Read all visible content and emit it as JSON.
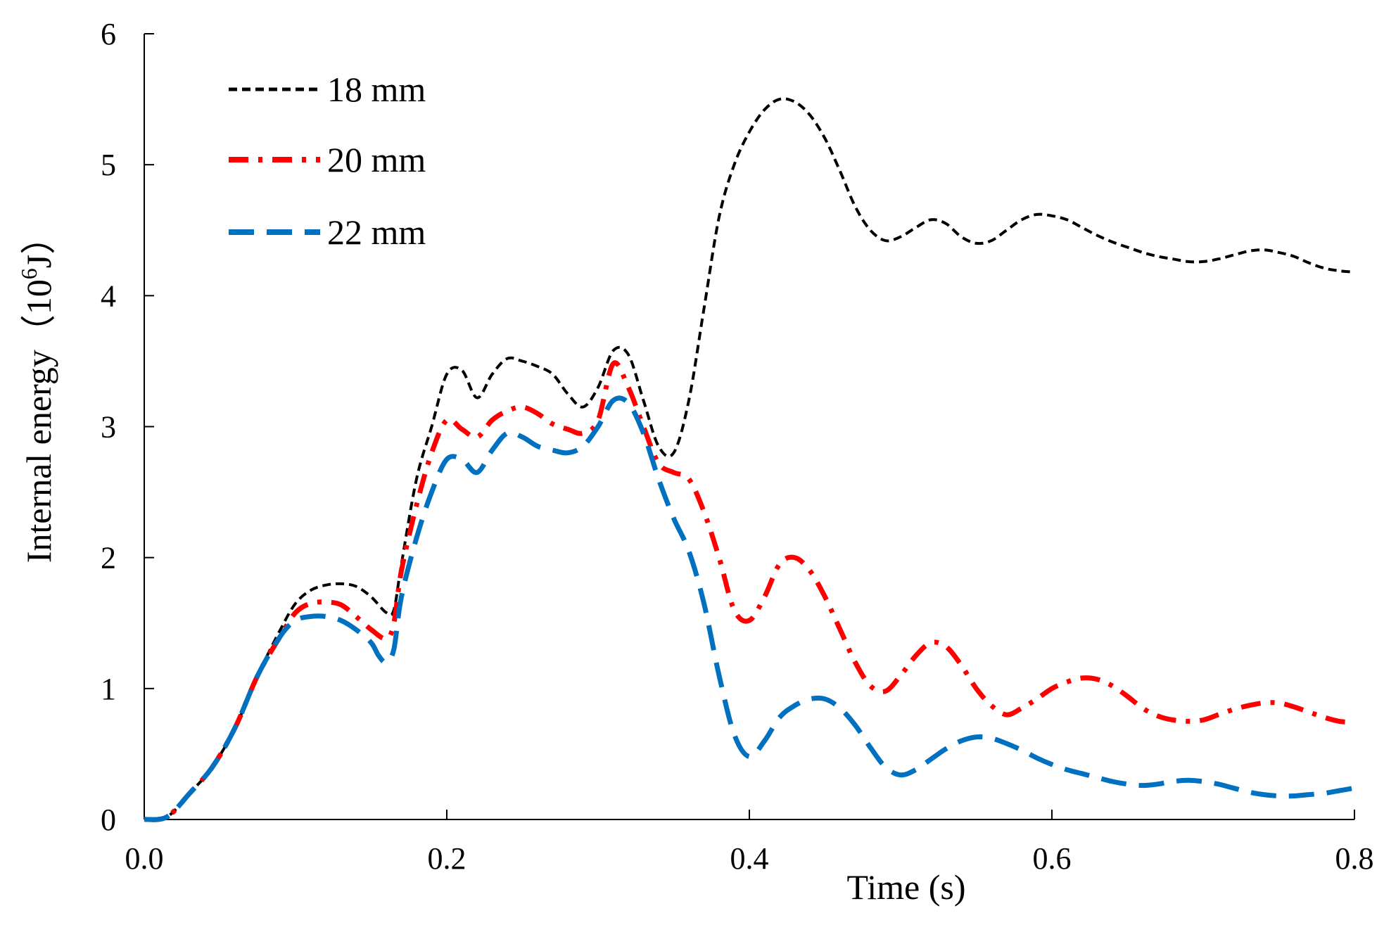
{
  "chart_data": {
    "type": "line",
    "title": "",
    "xlabel": "Time (s)",
    "ylabel": {
      "prefix": "Internal energy（10",
      "sup": "6",
      "suffix": "J）"
    },
    "xlim": [
      0,
      0.8
    ],
    "ylim": [
      0,
      6
    ],
    "xticks": [
      0.0,
      0.2,
      0.4,
      0.6,
      0.8
    ],
    "xtick_labels": [
      "0.0",
      "0.2",
      "0.4",
      "0.6",
      "0.8"
    ],
    "yticks": [
      0,
      1,
      2,
      3,
      4,
      5,
      6
    ],
    "ytick_labels": [
      "0",
      "1",
      "2",
      "3",
      "4",
      "5",
      "6"
    ],
    "grid": false,
    "legend_position": "top-left",
    "series": [
      {
        "name": "18 mm",
        "color": "#000000",
        "style": "short-dash",
        "x": [
          0,
          0.015,
          0.03,
          0.045,
          0.06,
          0.075,
          0.09,
          0.1,
          0.11,
          0.12,
          0.13,
          0.14,
          0.15,
          0.16,
          0.165,
          0.17,
          0.18,
          0.19,
          0.2,
          0.21,
          0.22,
          0.23,
          0.24,
          0.25,
          0.26,
          0.27,
          0.28,
          0.29,
          0.3,
          0.31,
          0.32,
          0.33,
          0.34,
          0.35,
          0.36,
          0.37,
          0.38,
          0.39,
          0.4,
          0.41,
          0.42,
          0.43,
          0.44,
          0.45,
          0.46,
          0.47,
          0.48,
          0.49,
          0.5,
          0.51,
          0.52,
          0.53,
          0.54,
          0.55,
          0.56,
          0.57,
          0.58,
          0.59,
          0.6,
          0.61,
          0.62,
          0.63,
          0.64,
          0.65,
          0.66,
          0.67,
          0.68,
          0.69,
          0.7,
          0.71,
          0.72,
          0.73,
          0.74,
          0.75,
          0.76,
          0.77,
          0.78,
          0.79,
          0.8
        ],
        "y": [
          0,
          0.02,
          0.2,
          0.4,
          0.7,
          1.1,
          1.45,
          1.65,
          1.75,
          1.79,
          1.8,
          1.78,
          1.7,
          1.58,
          1.6,
          1.95,
          2.6,
          3.0,
          3.4,
          3.43,
          3.22,
          3.4,
          3.52,
          3.5,
          3.46,
          3.4,
          3.25,
          3.15,
          3.3,
          3.58,
          3.55,
          3.2,
          2.85,
          2.8,
          3.2,
          3.9,
          4.6,
          5.0,
          5.25,
          5.42,
          5.5,
          5.48,
          5.38,
          5.2,
          4.95,
          4.68,
          4.5,
          4.42,
          4.45,
          4.52,
          4.58,
          4.55,
          4.45,
          4.4,
          4.42,
          4.5,
          4.58,
          4.62,
          4.61,
          4.58,
          4.52,
          4.46,
          4.41,
          4.37,
          4.33,
          4.3,
          4.28,
          4.26,
          4.26,
          4.28,
          4.31,
          4.34,
          4.35,
          4.33,
          4.3,
          4.25,
          4.21,
          4.19,
          4.18
        ]
      },
      {
        "name": "20 mm",
        "color": "#ff0000",
        "style": "dash-dot",
        "x": [
          0,
          0.015,
          0.03,
          0.045,
          0.06,
          0.075,
          0.09,
          0.1,
          0.11,
          0.12,
          0.13,
          0.14,
          0.15,
          0.16,
          0.165,
          0.17,
          0.18,
          0.19,
          0.2,
          0.21,
          0.22,
          0.23,
          0.24,
          0.25,
          0.26,
          0.27,
          0.28,
          0.29,
          0.3,
          0.31,
          0.32,
          0.33,
          0.34,
          0.35,
          0.36,
          0.37,
          0.38,
          0.39,
          0.4,
          0.41,
          0.42,
          0.43,
          0.44,
          0.45,
          0.46,
          0.47,
          0.48,
          0.49,
          0.5,
          0.51,
          0.52,
          0.53,
          0.54,
          0.55,
          0.56,
          0.57,
          0.58,
          0.59,
          0.6,
          0.61,
          0.62,
          0.63,
          0.64,
          0.65,
          0.66,
          0.67,
          0.68,
          0.69,
          0.7,
          0.71,
          0.72,
          0.73,
          0.74,
          0.75,
          0.76,
          0.77,
          0.78,
          0.79,
          0.8
        ],
        "y": [
          0,
          0.02,
          0.2,
          0.4,
          0.7,
          1.1,
          1.4,
          1.58,
          1.65,
          1.66,
          1.64,
          1.55,
          1.45,
          1.38,
          1.5,
          1.9,
          2.4,
          2.8,
          3.05,
          2.98,
          2.92,
          3.05,
          3.12,
          3.15,
          3.1,
          3.02,
          2.98,
          2.95,
          3.05,
          3.48,
          3.3,
          3.0,
          2.72,
          2.65,
          2.6,
          2.35,
          2.0,
          1.6,
          1.52,
          1.7,
          1.95,
          2.0,
          1.9,
          1.7,
          1.45,
          1.2,
          1.02,
          0.98,
          1.1,
          1.25,
          1.35,
          1.32,
          1.18,
          1.0,
          0.87,
          0.8,
          0.85,
          0.92,
          1.0,
          1.05,
          1.08,
          1.07,
          1.02,
          0.94,
          0.85,
          0.79,
          0.76,
          0.75,
          0.76,
          0.8,
          0.84,
          0.87,
          0.89,
          0.89,
          0.86,
          0.82,
          0.78,
          0.75,
          0.74
        ]
      },
      {
        "name": "22 mm",
        "color": "#0070c0",
        "style": "long-dash",
        "x": [
          0,
          0.015,
          0.03,
          0.045,
          0.06,
          0.075,
          0.09,
          0.1,
          0.11,
          0.12,
          0.13,
          0.14,
          0.15,
          0.155,
          0.16,
          0.165,
          0.17,
          0.18,
          0.19,
          0.2,
          0.21,
          0.22,
          0.23,
          0.24,
          0.25,
          0.26,
          0.27,
          0.28,
          0.29,
          0.3,
          0.31,
          0.32,
          0.33,
          0.34,
          0.35,
          0.36,
          0.37,
          0.38,
          0.39,
          0.4,
          0.41,
          0.42,
          0.43,
          0.44,
          0.45,
          0.46,
          0.47,
          0.48,
          0.49,
          0.5,
          0.51,
          0.52,
          0.53,
          0.54,
          0.55,
          0.56,
          0.57,
          0.58,
          0.59,
          0.6,
          0.61,
          0.62,
          0.63,
          0.64,
          0.65,
          0.66,
          0.67,
          0.68,
          0.69,
          0.7,
          0.71,
          0.72,
          0.73,
          0.74,
          0.75,
          0.76,
          0.77,
          0.78,
          0.79,
          0.8
        ],
        "y": [
          0,
          0.02,
          0.2,
          0.4,
          0.7,
          1.1,
          1.4,
          1.52,
          1.55,
          1.55,
          1.52,
          1.45,
          1.35,
          1.25,
          1.2,
          1.3,
          1.7,
          2.15,
          2.5,
          2.75,
          2.75,
          2.65,
          2.82,
          2.95,
          2.92,
          2.85,
          2.82,
          2.8,
          2.85,
          3.0,
          3.2,
          3.18,
          2.95,
          2.6,
          2.3,
          2.05,
          1.65,
          1.1,
          0.65,
          0.48,
          0.6,
          0.78,
          0.87,
          0.92,
          0.92,
          0.85,
          0.72,
          0.55,
          0.4,
          0.34,
          0.38,
          0.46,
          0.54,
          0.6,
          0.63,
          0.62,
          0.58,
          0.53,
          0.47,
          0.42,
          0.38,
          0.35,
          0.32,
          0.29,
          0.27,
          0.26,
          0.27,
          0.29,
          0.3,
          0.29,
          0.27,
          0.24,
          0.21,
          0.19,
          0.18,
          0.18,
          0.19,
          0.2,
          0.22,
          0.24
        ]
      }
    ]
  }
}
